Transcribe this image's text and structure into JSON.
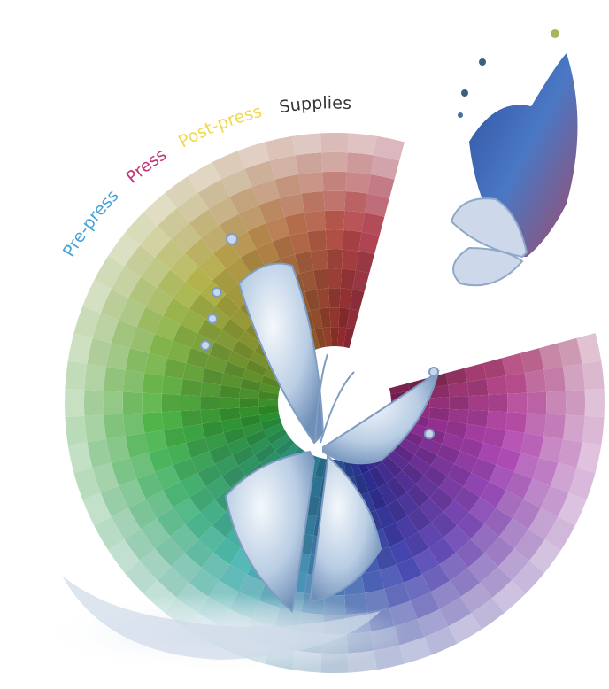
{
  "labels": [
    "Pre-press",
    "Press",
    "Post-press",
    "Supplies"
  ]
}
